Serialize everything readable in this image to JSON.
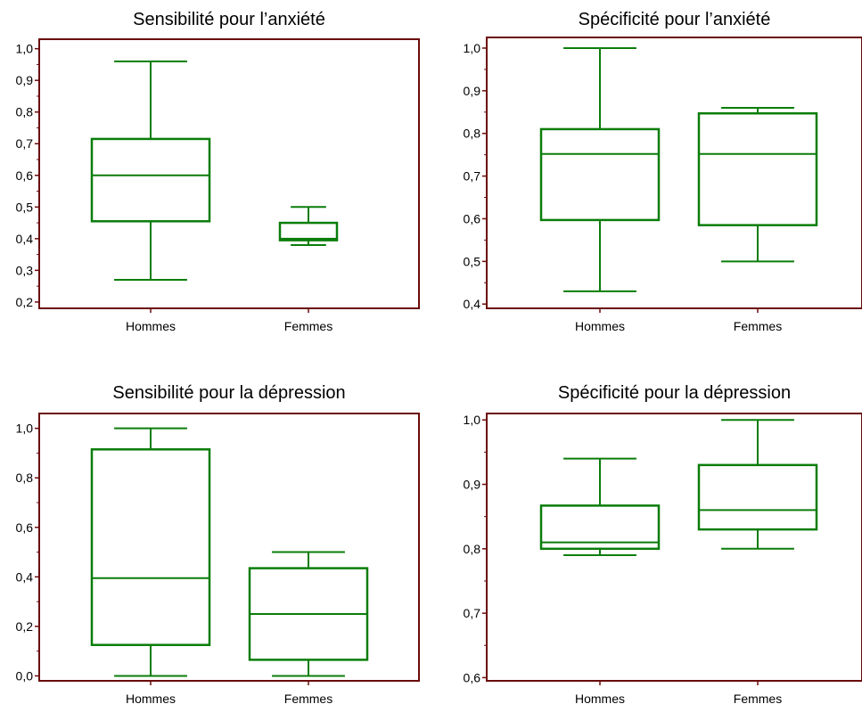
{
  "colors": {
    "frame": "#6b0a0a",
    "box": "#0a7d0a",
    "text": "#000000"
  },
  "chart_data": [
    {
      "type": "box",
      "title": "Sensibilité pour l’anxiété",
      "categories": [
        "Hommes",
        "Femmes"
      ],
      "ylim": [
        0.18,
        1.03
      ],
      "yticks": [
        0.2,
        0.3,
        0.4,
        0.5,
        0.6,
        0.7,
        0.8,
        0.9,
        1.0
      ],
      "ytick_labels": [
        "0,2",
        "0,3",
        "0,4",
        "0,5",
        "0,6",
        "0,7",
        "0,8",
        "0,9",
        "1,0"
      ],
      "boxes": [
        {
          "min": 0.27,
          "q1": 0.455,
          "median": 0.6,
          "q3": 0.715,
          "max": 0.96
        },
        {
          "min": 0.38,
          "q1": 0.395,
          "median": 0.4,
          "q3": 0.45,
          "max": 0.5
        }
      ]
    },
    {
      "type": "box",
      "title": "Spécificité pour l’anxiété",
      "categories": [
        "Hommes",
        "Femmes"
      ],
      "ylim": [
        0.39,
        1.025
      ],
      "yticks": [
        0.4,
        0.5,
        0.6,
        0.7,
        0.8,
        0.9,
        1.0
      ],
      "ytick_labels": [
        "0,4",
        "0,5",
        "0,6",
        "0,7",
        "0,8",
        "0,9",
        "1,0"
      ],
      "boxes": [
        {
          "min": 0.43,
          "q1": 0.597,
          "median": 0.752,
          "q3": 0.81,
          "max": 1.0
        },
        {
          "min": 0.5,
          "q1": 0.585,
          "median": 0.752,
          "q3": 0.847,
          "max": 0.86
        }
      ]
    },
    {
      "type": "box",
      "title": "Sensibilité pour la dépression",
      "categories": [
        "Hommes",
        "Femmes"
      ],
      "ylim": [
        -0.02,
        1.06
      ],
      "yticks": [
        0.0,
        0.2,
        0.4,
        0.6,
        0.8,
        1.0
      ],
      "ytick_labels": [
        "0,0",
        "0,2",
        "0,4",
        "0,6",
        "0,8",
        "1,0"
      ],
      "boxes": [
        {
          "min": 0.0,
          "q1": 0.125,
          "median": 0.395,
          "q3": 0.915,
          "max": 1.0
        },
        {
          "min": 0.0,
          "q1": 0.065,
          "median": 0.25,
          "q3": 0.435,
          "max": 0.5
        }
      ]
    },
    {
      "type": "box",
      "title": "Spécificité pour la dépression",
      "categories": [
        "Hommes",
        "Femmes"
      ],
      "ylim": [
        0.595,
        1.01
      ],
      "yticks": [
        0.6,
        0.7,
        0.8,
        0.9,
        1.0
      ],
      "ytick_labels": [
        "0,6",
        "0,7",
        "0,8",
        "0,9",
        "1,0"
      ],
      "boxes": [
        {
          "min": 0.79,
          "q1": 0.8,
          "median": 0.81,
          "q3": 0.867,
          "max": 0.94
        },
        {
          "min": 0.8,
          "q1": 0.83,
          "median": 0.86,
          "q3": 0.93,
          "max": 1.0
        }
      ]
    }
  ]
}
